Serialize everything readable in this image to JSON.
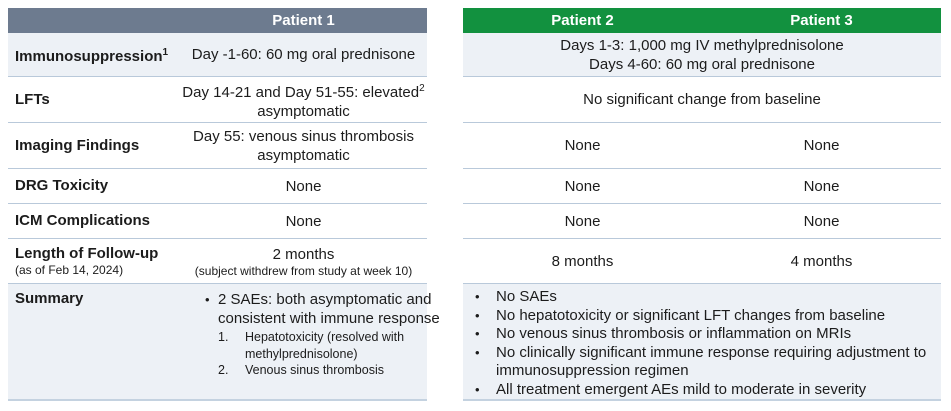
{
  "glyphs": {
    "bullet": "•"
  },
  "colors": {
    "patient1_header": "#6d7b8f",
    "patient23_header": "#12913f",
    "shaded_row": "#edf1f6",
    "separator": "#b9c9da",
    "header_text": "#ffffff",
    "body_text": "#1c1c1c"
  },
  "patient1": {
    "header": "Patient 1",
    "rows": {
      "immunosuppression": {
        "label": "Immunosuppression",
        "label_sup": "1",
        "value": "Day -1-60: 60 mg oral prednisone"
      },
      "lfts": {
        "label": "LFTs",
        "value_line1": "Day 14-21 and Day 51-55:  elevated",
        "value_sup": "2",
        "value_line2": "asymptomatic"
      },
      "imaging": {
        "label": "Imaging Findings",
        "value_line1": "Day 55: venous sinus thrombosis",
        "value_line2": "asymptomatic"
      },
      "drg": {
        "label": "DRG Toxicity",
        "value": "None"
      },
      "icm": {
        "label": "ICM Complications",
        "value": "None"
      },
      "followup": {
        "label": "Length of Follow-up",
        "label_note": "(as of Feb 14, 2024)",
        "value": "2 months",
        "value_note": "(subject withdrew from study at week 10)"
      },
      "summary": {
        "label": "Summary",
        "bullet_text": "2 SAEs: both asymptomatic and consistent with immune response",
        "items": [
          {
            "num": "1.",
            "text": "Hepatotoxicity (resolved with methylprednisolone)"
          },
          {
            "num": "2.",
            "text": "Venous sinus thrombosis"
          }
        ]
      }
    }
  },
  "patient23": {
    "headers": [
      "Patient 2",
      "Patient 3"
    ],
    "immunosuppression": {
      "line1": "Days 1-3: 1,000 mg IV methylprednisolone",
      "line2": "Days 4-60: 60 mg oral prednisone"
    },
    "lfts": "No significant change from baseline",
    "imaging": [
      "None",
      "None"
    ],
    "drg": [
      "None",
      "None"
    ],
    "icm": [
      "None",
      "None"
    ],
    "followup": [
      "8 months",
      "4 months"
    ],
    "summary": [
      "No SAEs",
      "No hepatotoxicity or significant LFT changes from baseline",
      "No venous sinus thrombosis or inflammation on MRIs",
      "No clinically significant immune response requiring adjustment to immunosuppression regimen",
      "All treatment emergent AEs mild to moderate in severity"
    ]
  }
}
